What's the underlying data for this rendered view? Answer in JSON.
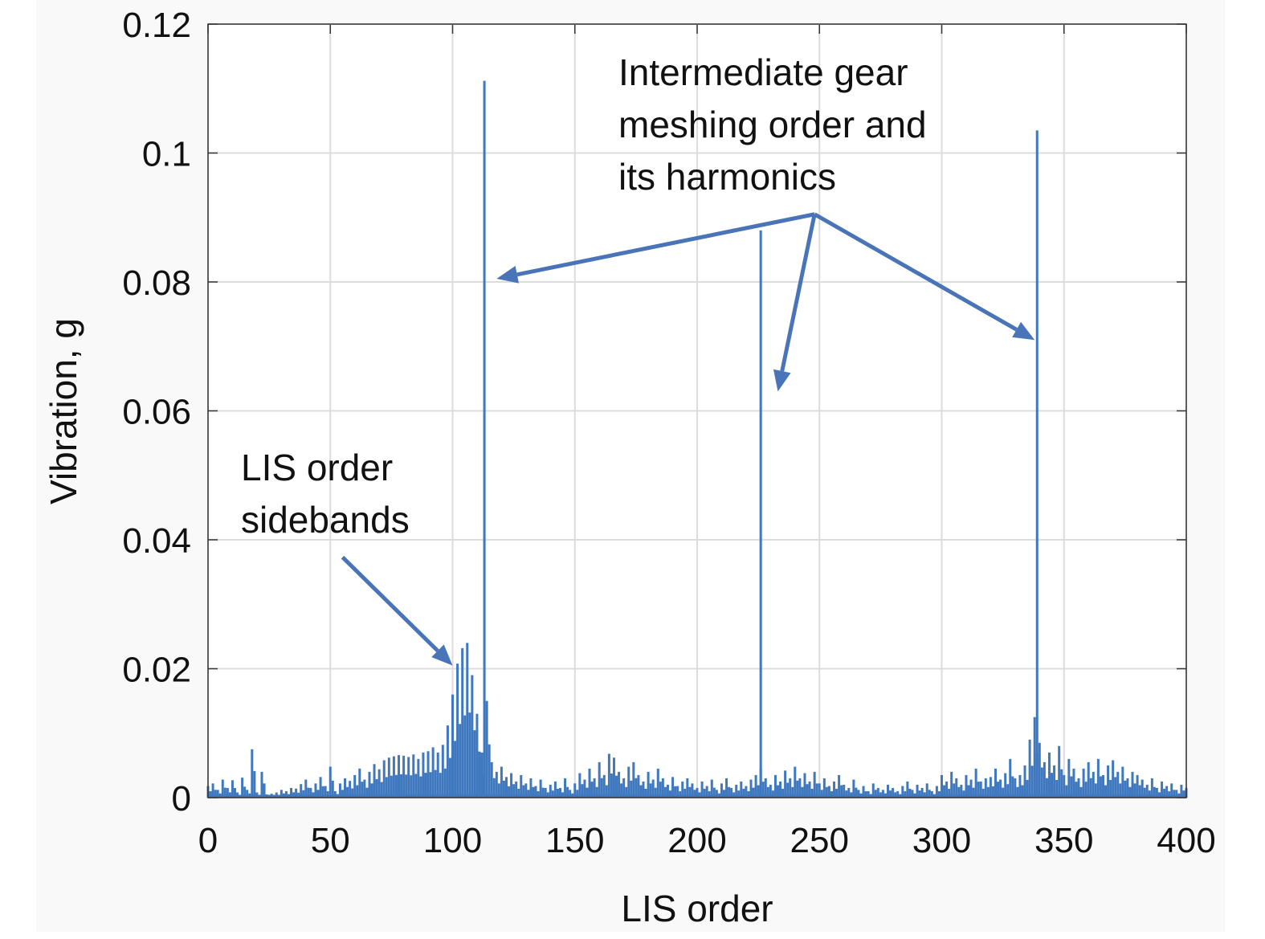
{
  "chart_data": {
    "type": "line",
    "title": "",
    "xlabel": "LIS order",
    "ylabel": "Vibration, g",
    "xlim": [
      0,
      400
    ],
    "ylim": [
      0,
      0.12
    ],
    "grid": true,
    "xticks": [
      0,
      50,
      100,
      150,
      200,
      250,
      300,
      350,
      400
    ],
    "xtick_labels": [
      "0",
      "50",
      "100",
      "150",
      "200",
      "250",
      "300",
      "350",
      "400"
    ],
    "yticks": [
      0,
      0.02,
      0.04,
      0.06,
      0.08,
      0.1,
      0.12
    ],
    "ytick_labels": [
      "0",
      "0.02",
      "0.04",
      "0.06",
      "0.08",
      "0.1",
      "0.12"
    ],
    "series_color": "#3f78bf",
    "arrow_color": "#4a74b8",
    "spectrum": {
      "x_start": 0,
      "x_step": 2,
      "y": [
        0.0018,
        0.0022,
        0.0012,
        0.0028,
        0.0015,
        0.0027,
        0.0008,
        0.0031,
        0.0012,
        0.0075,
        0.0008,
        0.004,
        0.0005,
        0.0006,
        0.0008,
        0.0012,
        0.001,
        0.0015,
        0.0014,
        0.0021,
        0.0028,
        0.0015,
        0.0022,
        0.0032,
        0.0018,
        0.0048,
        0.001,
        0.0022,
        0.003,
        0.0026,
        0.0035,
        0.0045,
        0.0028,
        0.004,
        0.0052,
        0.0044,
        0.0058,
        0.0062,
        0.0064,
        0.0066,
        0.0065,
        0.0063,
        0.0067,
        0.006,
        0.007,
        0.0072,
        0.0078,
        0.007,
        0.0082,
        0.0112,
        0.016,
        0.0208,
        0.0232,
        0.024,
        0.019,
        0.013,
        0.007,
        0.015,
        0.0055,
        0.004,
        0.0048,
        0.0032,
        0.0038,
        0.0025,
        0.0035,
        0.0022,
        0.003,
        0.0018,
        0.0028,
        0.0015,
        0.002,
        0.0025,
        0.0015,
        0.003,
        0.0012,
        0.0022,
        0.0038,
        0.0028,
        0.0045,
        0.003,
        0.0055,
        0.0035,
        0.0068,
        0.0062,
        0.004,
        0.003,
        0.0048,
        0.0055,
        0.0035,
        0.0025,
        0.004,
        0.0028,
        0.0045,
        0.003,
        0.002,
        0.0032,
        0.0018,
        0.0025,
        0.003,
        0.0022,
        0.0015,
        0.0025,
        0.0018,
        0.0028,
        0.0012,
        0.0022,
        0.003,
        0.0015,
        0.002,
        0.0025,
        0.0018,
        0.0028,
        0.0035,
        0.0045,
        0.003,
        0.002,
        0.0035,
        0.0025,
        0.0042,
        0.003,
        0.0048,
        0.003,
        0.0038,
        0.0025,
        0.004,
        0.0022,
        0.003,
        0.0018,
        0.0025,
        0.0035,
        0.002,
        0.0015,
        0.0028,
        0.0012,
        0.0018,
        0.001,
        0.0022,
        0.0015,
        0.0012,
        0.002,
        0.0015,
        0.001,
        0.0018,
        0.0025,
        0.0012,
        0.002,
        0.0015,
        0.0022,
        0.001,
        0.0018,
        0.0035,
        0.0025,
        0.004,
        0.003,
        0.002,
        0.0035,
        0.0028,
        0.0045,
        0.0025,
        0.003,
        0.0032,
        0.0045,
        0.0028,
        0.0038,
        0.006,
        0.003,
        0.0035,
        0.005,
        0.009,
        0.0125,
        0.0085,
        0.0055,
        0.007,
        0.005,
        0.008,
        0.0035,
        0.006,
        0.0045,
        0.003,
        0.0045,
        0.0055,
        0.004,
        0.006,
        0.0035,
        0.005,
        0.0058,
        0.004,
        0.0048,
        0.003,
        0.004,
        0.0035,
        0.0028,
        0.002,
        0.003,
        0.0015,
        0.0025,
        0.0018,
        0.0022,
        0.0012,
        0.002,
        0.0015
      ]
    },
    "peaks": [
      {
        "x": 113,
        "y": 0.1112
      },
      {
        "x": 226,
        "y": 0.088
      },
      {
        "x": 339,
        "y": 0.1035
      }
    ],
    "annotations": [
      {
        "lines": [
          "Intermediate gear",
          "meshing order and",
          "its harmonics"
        ],
        "arrow_from": [
          248,
          0.0905
        ],
        "arrow_to": [
          [
            118,
            0.0805
          ],
          [
            233,
            0.063
          ],
          [
            338,
            0.071
          ]
        ]
      },
      {
        "lines": [
          "LIS order",
          "sidebands"
        ],
        "arrow_from": [
          55,
          0.0373
        ],
        "arrow_to": [
          [
            100,
            0.0205
          ]
        ]
      }
    ]
  }
}
